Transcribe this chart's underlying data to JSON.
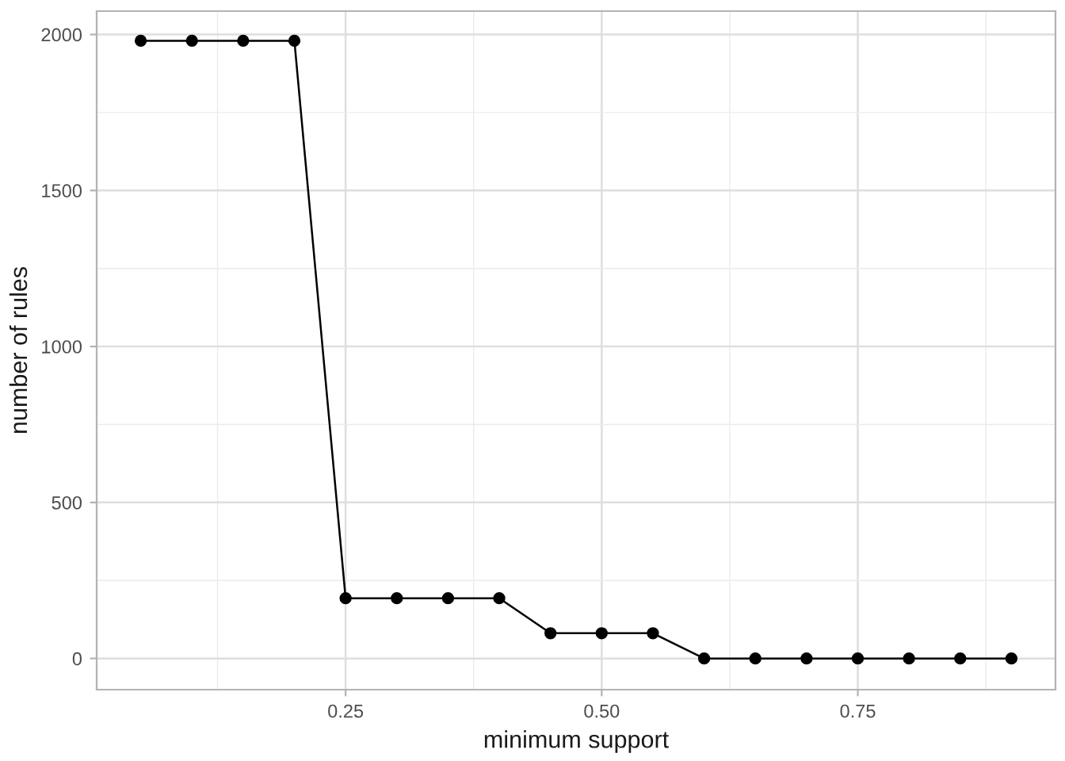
{
  "chart_data": {
    "type": "line",
    "xlabel": "minimum support",
    "ylabel": "number of rules",
    "x": [
      0.05,
      0.1,
      0.15,
      0.2,
      0.25,
      0.3,
      0.35,
      0.4,
      0.45,
      0.5,
      0.55,
      0.6,
      0.65,
      0.7,
      0.75,
      0.8,
      0.85,
      0.9
    ],
    "series": [
      {
        "color": "#000000",
        "values": [
          1980,
          1980,
          1980,
          1980,
          193,
          193,
          193,
          193,
          81,
          81,
          81,
          0,
          0,
          0,
          0,
          0,
          0,
          0
        ]
      }
    ],
    "xlim": [
      0.007,
      0.943
    ],
    "ylim": [
      -100,
      2075
    ],
    "xticks": [
      0.25,
      {
        "value": 0.5,
        "label": "0.50"
      },
      0.75
    ],
    "yticks": [
      0,
      500,
      1000,
      1500,
      2000
    ],
    "grid": true,
    "marker": "circle",
    "line_style": "solid",
    "legend": false
  }
}
